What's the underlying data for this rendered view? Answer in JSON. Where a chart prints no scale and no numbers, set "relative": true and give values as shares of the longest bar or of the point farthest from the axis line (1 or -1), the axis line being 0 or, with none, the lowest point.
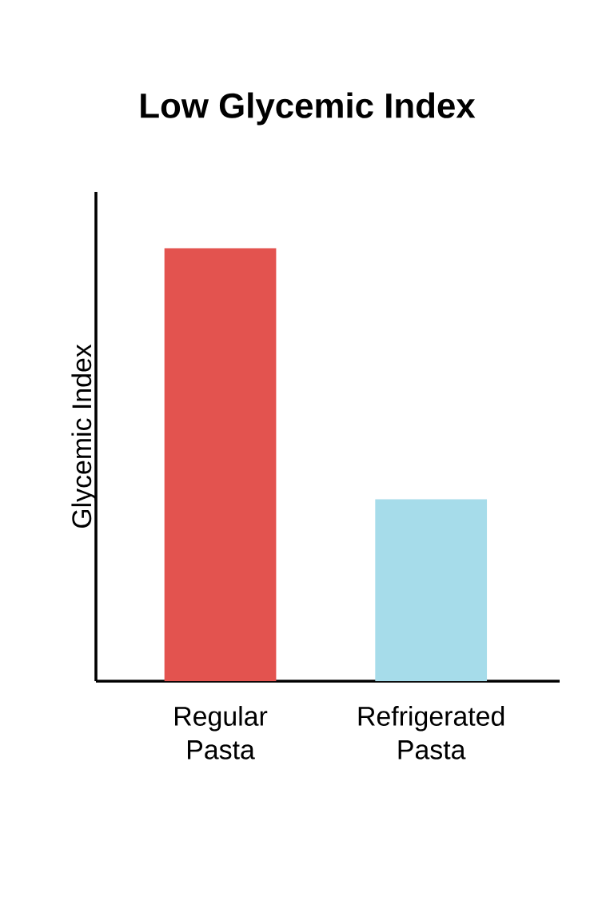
{
  "chart_data": {
    "type": "bar",
    "title": "Low Glycemic Index",
    "ylabel": "Glycemic Index",
    "categories": [
      "Regular Pasta",
      "Refrigerated Pasta"
    ],
    "values": [
      1,
      0.42
    ],
    "colors": [
      "#e3534f",
      "#a6dcea"
    ],
    "relative": true
  }
}
